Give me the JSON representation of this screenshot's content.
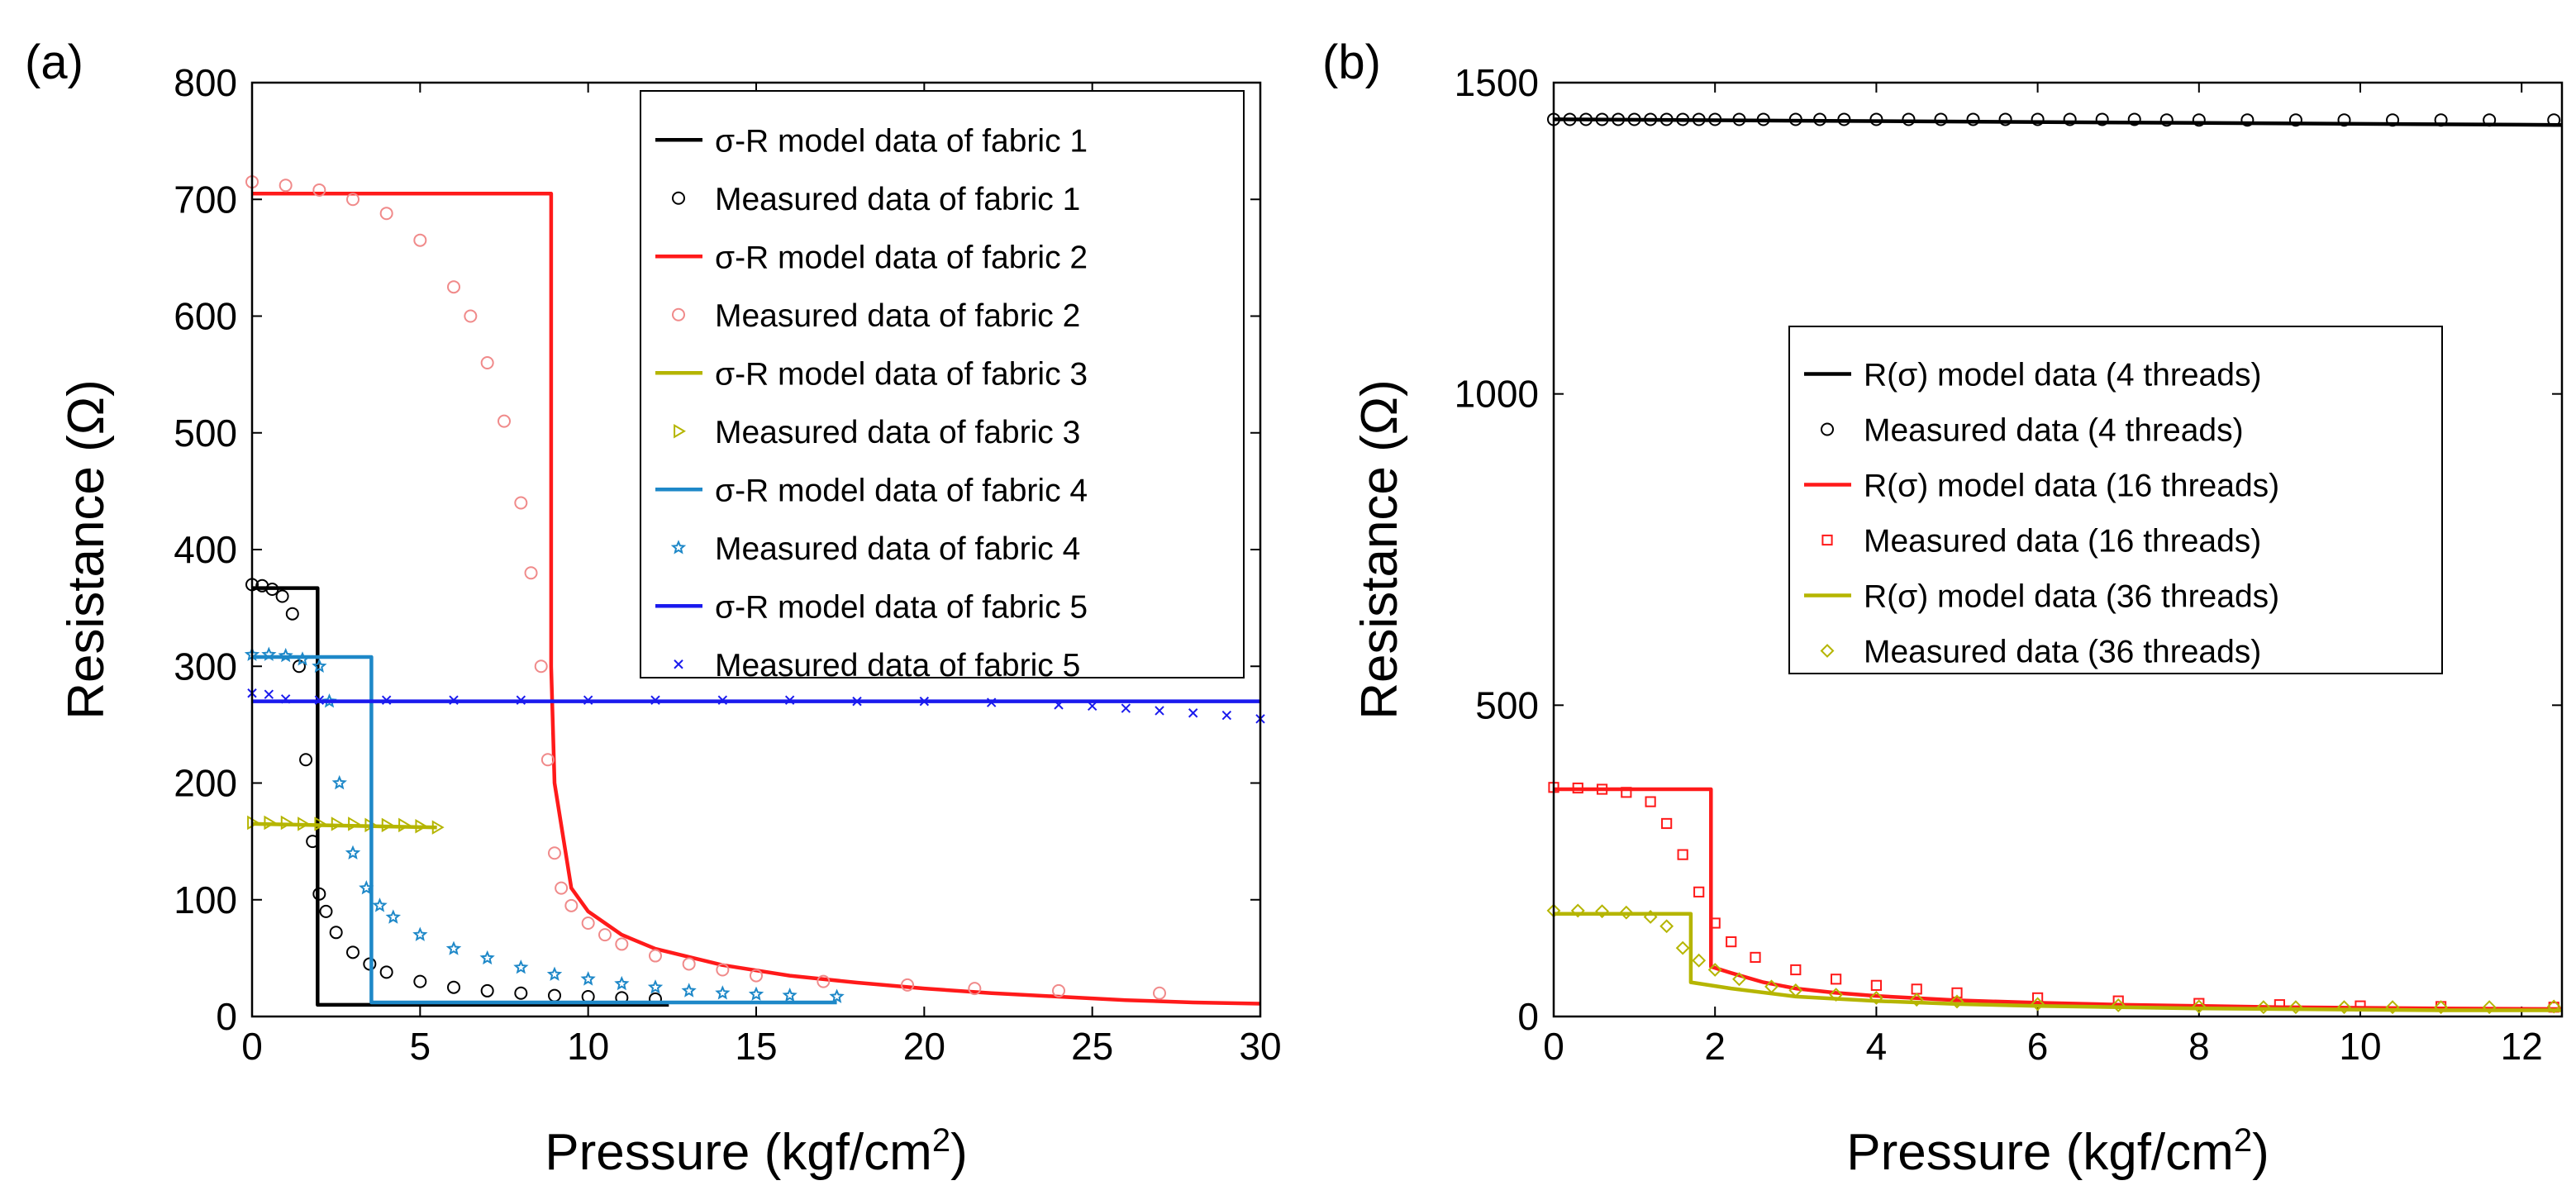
{
  "colors": {
    "black": "#000000",
    "red": "#ff1a1a",
    "olive": "#b5b500",
    "cyan": "#1e88c8",
    "blue": "#1a1aee",
    "pink": "#f08a8a",
    "orange": "#ff8a00"
  },
  "chart_data": [
    {
      "type": "line",
      "panel_label": "(a)",
      "xlabel": "Pressure (kgf/cm",
      "xlabel_sup": "2",
      "xlabel_end": ")",
      "ylabel": "Resistance (Ω)",
      "xlim": [
        0,
        30
      ],
      "ylim": [
        0,
        800
      ],
      "xticks": [
        0,
        5,
        10,
        15,
        20,
        25,
        30
      ],
      "yticks": [
        0,
        100,
        200,
        300,
        400,
        500,
        600,
        700,
        800
      ],
      "legend_position": "top-right",
      "series": [
        {
          "name": "σ-R model data of fabric 1",
          "kind": "line",
          "color": "black",
          "x": [
            0,
            1.95,
            1.95,
            12.4
          ],
          "y": [
            367,
            367,
            10,
            10
          ]
        },
        {
          "name": "Measured data of fabric 1",
          "kind": "marker",
          "marker": "circle",
          "color": "black",
          "x": [
            0,
            0.3,
            0.6,
            0.9,
            1.2,
            1.4,
            1.6,
            1.8,
            2.0,
            2.2,
            2.5,
            3.0,
            3.5,
            4.0,
            5.0,
            6.0,
            7.0,
            8.0,
            9.0,
            10.0,
            11.0,
            12.0
          ],
          "y": [
            370,
            369,
            366,
            360,
            345,
            300,
            220,
            150,
            105,
            90,
            72,
            55,
            45,
            38,
            30,
            25,
            22,
            20,
            18,
            17,
            16,
            15
          ]
        },
        {
          "name": "σ-R model data of fabric 2",
          "kind": "line",
          "color": "red",
          "x": [
            0,
            8.9,
            8.9,
            9.0,
            9.5,
            10,
            11,
            12,
            14,
            16,
            18,
            20,
            22,
            24,
            26,
            28,
            30
          ],
          "y": [
            705,
            705,
            300,
            200,
            110,
            90,
            70,
            58,
            44,
            35,
            29,
            24,
            20,
            17,
            14,
            12,
            11
          ]
        },
        {
          "name": "Measured data of fabric 2",
          "kind": "marker",
          "marker": "circle",
          "color": "pink",
          "x": [
            0,
            1,
            2,
            3,
            4,
            5,
            6,
            6.5,
            7,
            7.5,
            8,
            8.3,
            8.6,
            8.8,
            9.0,
            9.2,
            9.5,
            10,
            10.5,
            11,
            12,
            13,
            14,
            15,
            17,
            19.5,
            21.5,
            24,
            27
          ],
          "y": [
            715,
            712,
            708,
            700,
            688,
            665,
            625,
            600,
            560,
            510,
            440,
            380,
            300,
            220,
            140,
            110,
            95,
            80,
            70,
            62,
            52,
            45,
            40,
            35,
            30,
            27,
            24,
            22,
            20
          ]
        },
        {
          "name": "σ-R model data of fabric 3",
          "kind": "line",
          "color": "olive",
          "x": [
            0,
            5.5
          ],
          "y": [
            165,
            162
          ]
        },
        {
          "name": "Measured data of fabric 3",
          "kind": "marker",
          "marker": "triangle-right",
          "color": "olive",
          "x": [
            0,
            0.5,
            1,
            1.5,
            2,
            2.5,
            3,
            3.5,
            4,
            4.5,
            5,
            5.5
          ],
          "y": [
            166,
            166,
            166,
            165,
            165,
            165,
            165,
            164,
            164,
            164,
            163,
            162
          ]
        },
        {
          "name": "σ-R model data of fabric 4",
          "kind": "line",
          "color": "cyan",
          "x": [
            0,
            3.55,
            3.55,
            17.4
          ],
          "y": [
            308,
            308,
            12,
            12
          ]
        },
        {
          "name": "Measured data of fabric 4",
          "kind": "marker",
          "marker": "pentagram",
          "color": "cyan",
          "x": [
            0,
            0.5,
            1,
            1.5,
            2,
            2.3,
            2.6,
            3.0,
            3.4,
            3.8,
            4.2,
            5,
            6,
            7,
            8,
            9,
            10,
            11,
            12,
            13,
            14,
            15,
            16,
            17.4
          ],
          "y": [
            310,
            310,
            309,
            306,
            300,
            270,
            200,
            140,
            110,
            95,
            85,
            70,
            58,
            50,
            42,
            36,
            32,
            28,
            25,
            22,
            20,
            19,
            18,
            17
          ]
        },
        {
          "name": "σ-R model data of fabric 5",
          "kind": "line",
          "color": "blue",
          "x": [
            0,
            30
          ],
          "y": [
            270,
            270
          ]
        },
        {
          "name": "Measured data of fabric 5",
          "kind": "marker",
          "marker": "x",
          "color": "blue",
          "x": [
            0,
            0.5,
            1,
            2,
            4,
            6,
            8,
            10,
            12,
            14,
            16,
            18,
            20,
            22,
            24,
            25,
            26,
            27,
            28,
            29,
            30
          ],
          "y": [
            277,
            276,
            272,
            271,
            271,
            271,
            271,
            271,
            271,
            271,
            271,
            270,
            270,
            269,
            267,
            266,
            264,
            262,
            260,
            258,
            255
          ]
        }
      ]
    },
    {
      "type": "line",
      "panel_label": "(b)",
      "xlabel": "Pressure (kgf/cm",
      "xlabel_sup": "2",
      "xlabel_end": ")",
      "ylabel": "Resistance (Ω)",
      "xlim": [
        0,
        12.5
      ],
      "ylim": [
        0,
        1500
      ],
      "xticks": [
        0,
        2,
        4,
        6,
        8,
        10,
        12
      ],
      "yticks": [
        0,
        500,
        1000,
        1500
      ],
      "legend_position": "center-right",
      "series": [
        {
          "name": "R(σ) model data (4 threads)",
          "kind": "line",
          "color": "black",
          "x": [
            0,
            12.5
          ],
          "y": [
            1441,
            1432
          ]
        },
        {
          "name": "Measured data (4 threads)",
          "kind": "marker",
          "marker": "circle",
          "color": "black",
          "x": [
            0,
            0.2,
            0.4,
            0.6,
            0.8,
            1.0,
            1.2,
            1.4,
            1.6,
            1.8,
            2.0,
            2.3,
            2.6,
            3.0,
            3.3,
            3.6,
            4.0,
            4.4,
            4.8,
            5.2,
            5.6,
            6.0,
            6.4,
            6.8,
            7.2,
            7.6,
            8.0,
            8.6,
            9.2,
            9.8,
            10.4,
            11.0,
            11.6,
            12.4
          ],
          "y": [
            1441,
            1441,
            1441,
            1441,
            1441,
            1441,
            1441,
            1441,
            1441,
            1441,
            1441,
            1441,
            1441,
            1441,
            1441,
            1441,
            1441,
            1441,
            1441,
            1441,
            1441,
            1441,
            1441,
            1441,
            1441,
            1440,
            1440,
            1440,
            1440,
            1440,
            1440,
            1440,
            1440,
            1440
          ]
        },
        {
          "name": "R(σ) model data (16 threads)",
          "kind": "line",
          "color": "red",
          "x": [
            0,
            1.95,
            1.95,
            2.2,
            2.6,
            3,
            3.5,
            4,
            5,
            6,
            7,
            8,
            9,
            10,
            11,
            12.5
          ],
          "y": [
            365,
            365,
            80,
            70,
            55,
            45,
            38,
            33,
            26,
            22,
            19,
            17,
            15,
            14,
            13,
            12
          ]
        },
        {
          "name": "Measured data (16 threads)",
          "kind": "marker",
          "marker": "square",
          "color": "red",
          "x": [
            0,
            0.3,
            0.6,
            0.9,
            1.2,
            1.4,
            1.6,
            1.8,
            2.0,
            2.2,
            2.5,
            3.0,
            3.5,
            4.0,
            4.5,
            5.0,
            6.0,
            7.0,
            8.0,
            9.0,
            10.0,
            11.0,
            12.4
          ],
          "y": [
            368,
            367,
            365,
            360,
            345,
            310,
            260,
            200,
            150,
            120,
            95,
            75,
            60,
            50,
            44,
            38,
            30,
            25,
            21,
            19,
            17,
            16,
            15
          ]
        },
        {
          "name": "R(σ) model data (36 threads)",
          "kind": "line",
          "color": "olive",
          "x": [
            0,
            1.7,
            1.7,
            2.2,
            3,
            4,
            5,
            6,
            7,
            8,
            9,
            10,
            11,
            12.5
          ],
          "y": [
            165,
            165,
            55,
            45,
            32,
            25,
            20,
            17,
            15,
            13,
            12,
            11,
            10,
            10
          ]
        },
        {
          "name": "Measured data (36 threads)",
          "kind": "marker",
          "marker": "diamond",
          "color": "olive",
          "x": [
            0,
            0.3,
            0.6,
            0.9,
            1.2,
            1.4,
            1.6,
            1.8,
            2.0,
            2.3,
            2.7,
            3.0,
            3.5,
            4.0,
            4.5,
            5.0,
            6.0,
            7.0,
            8.0,
            8.8,
            9.2,
            9.8,
            10.4,
            11.0,
            11.6,
            12.4
          ],
          "y": [
            170,
            170,
            169,
            167,
            160,
            145,
            110,
            90,
            75,
            60,
            48,
            42,
            35,
            30,
            27,
            24,
            20,
            18,
            16,
            15,
            15,
            15,
            15,
            15,
            15,
            16
          ]
        }
      ]
    }
  ]
}
